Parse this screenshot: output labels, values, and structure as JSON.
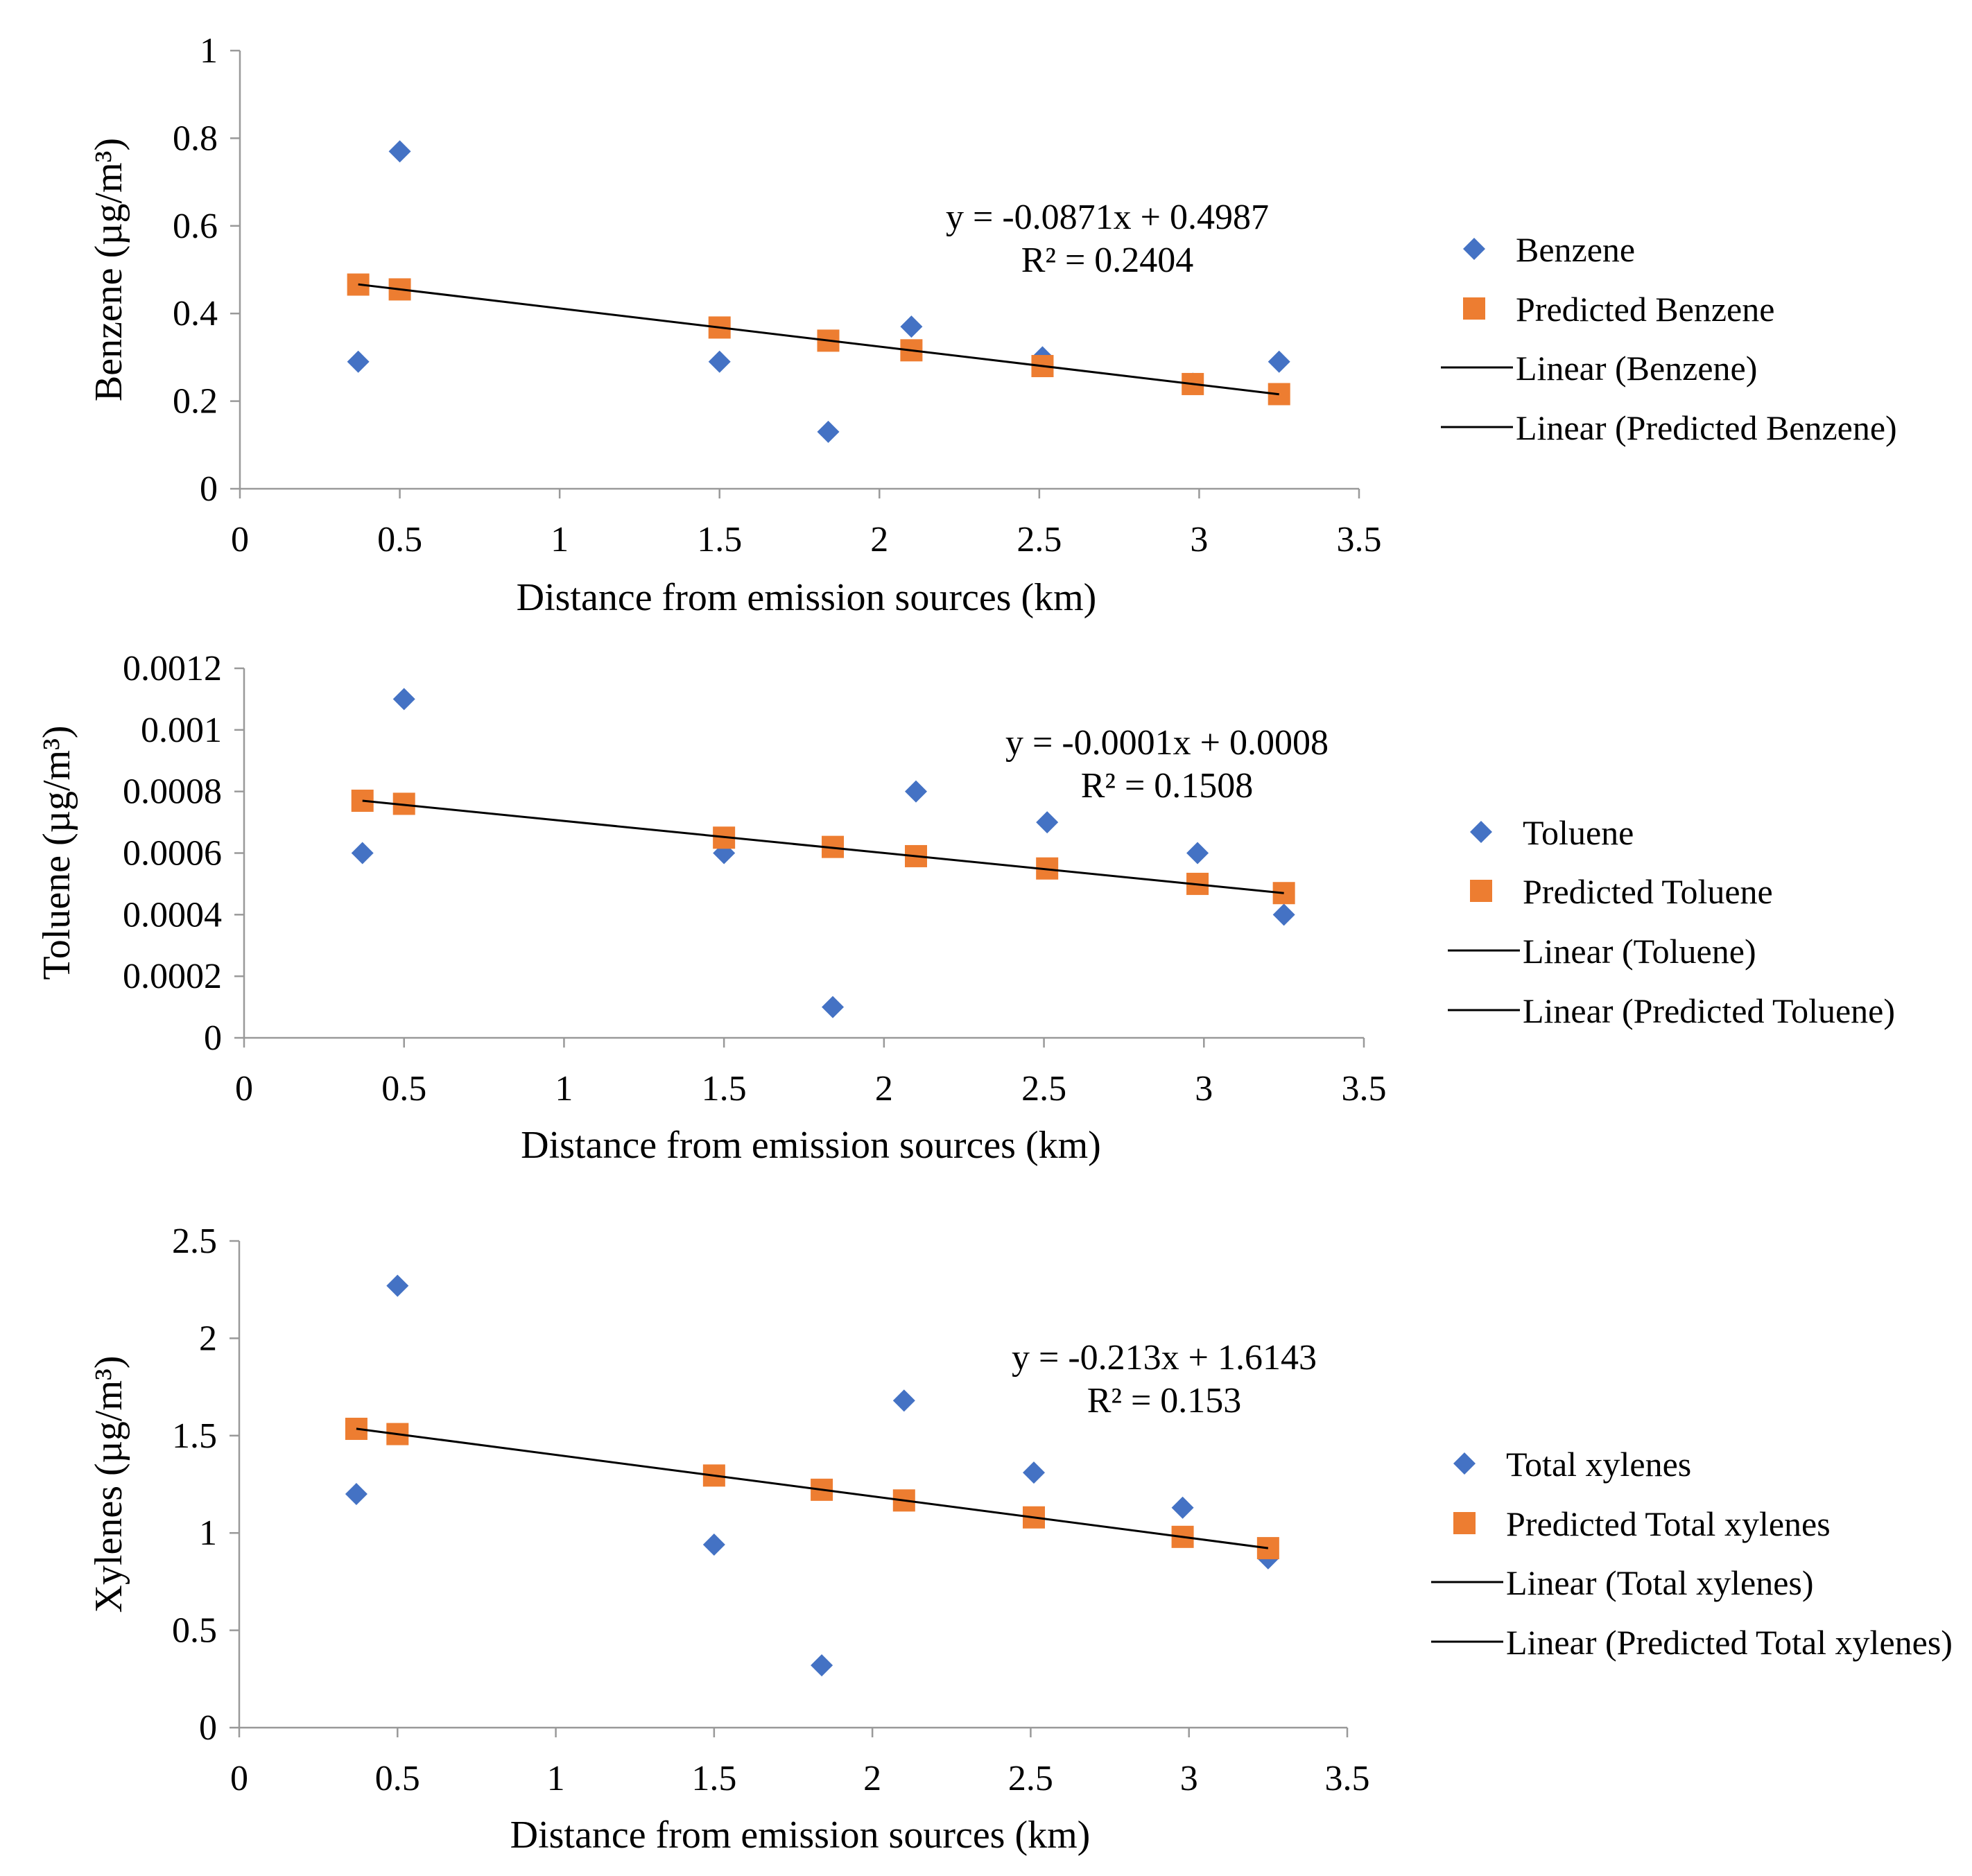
{
  "chart_data": [
    {
      "type": "scatter",
      "xlabel": "Distance from emission sources (km)",
      "ylabel": "Benzene (µg/m³)",
      "xlim": [
        0,
        3.5
      ],
      "ylim": [
        0,
        1
      ],
      "xticks": [
        "0",
        "0.5",
        "1",
        "1.5",
        "2",
        "2.5",
        "3",
        "3.5"
      ],
      "xtick_values": [
        0,
        0.5,
        1,
        1.5,
        2,
        2.5,
        3,
        3.5
      ],
      "yticks": [
        "0",
        "0.2",
        "0.4",
        "0.6",
        "0.8",
        "1"
      ],
      "ytick_values": [
        0,
        0.2,
        0.4,
        0.6,
        0.8,
        1
      ],
      "x": [
        0.37,
        0.5,
        1.5,
        1.84,
        2.1,
        2.51,
        2.98,
        3.25
      ],
      "series": [
        {
          "name": "Benzene",
          "marker": "diamond",
          "color": "#4472C4",
          "values": [
            0.29,
            0.77,
            0.29,
            0.13,
            0.37,
            0.3,
            0.24,
            0.29
          ]
        },
        {
          "name": "Predicted Benzene",
          "marker": "square",
          "color": "#ED7D31",
          "values": [
            0.466,
            0.455,
            0.368,
            0.338,
            0.316,
            0.28,
            0.239,
            0.216
          ]
        }
      ],
      "trendlines": [
        {
          "name": "Linear (Benzene)",
          "slope": -0.0871,
          "intercept": 0.4987
        },
        {
          "name": "Linear (Predicted Benzene)",
          "slope": -0.0871,
          "intercept": 0.4987
        }
      ],
      "equation": "y = -0.0871x + 0.4987",
      "r2": "R² = 0.2404",
      "legend": [
        "Benzene",
        "Predicted Benzene",
        "Linear (Benzene)",
        "Linear (Predicted Benzene)"
      ],
      "legend_position": "right"
    },
    {
      "type": "scatter",
      "xlabel": "Distance from emission sources (km)",
      "ylabel": "Toluene (µg/m³)",
      "xlim": [
        0,
        3.5
      ],
      "ylim": [
        0,
        0.0012
      ],
      "xticks": [
        "0",
        "0.5",
        "1",
        "1.5",
        "2",
        "2.5",
        "3",
        "3.5"
      ],
      "xtick_values": [
        0,
        0.5,
        1,
        1.5,
        2,
        2.5,
        3,
        3.5
      ],
      "yticks": [
        "0",
        "0.0002",
        "0.0004",
        "0.0006",
        "0.0008",
        "0.001",
        "0.0012"
      ],
      "ytick_values": [
        0,
        0.0002,
        0.0004,
        0.0006,
        0.0008,
        0.001,
        0.0012
      ],
      "x": [
        0.37,
        0.5,
        1.5,
        1.84,
        2.1,
        2.51,
        2.98,
        3.25
      ],
      "series": [
        {
          "name": "Toluene",
          "marker": "diamond",
          "color": "#4472C4",
          "values": [
            0.0006,
            0.0011,
            0.0006,
            0.0001,
            0.0008,
            0.0007,
            0.0006,
            0.0004
          ]
        },
        {
          "name": "Predicted Toluene",
          "marker": "square",
          "color": "#ED7D31",
          "values": [
            0.00077,
            0.00076,
            0.00065,
            0.00062,
            0.00059,
            0.00055,
            0.0005,
            0.00047
          ]
        }
      ],
      "trendlines": [
        {
          "name": "Linear (Toluene)",
          "from": [
            0.37,
            0.00077
          ],
          "to": [
            3.25,
            0.00047
          ]
        },
        {
          "name": "Linear (Predicted Toluene)",
          "from": [
            0.37,
            0.00077
          ],
          "to": [
            3.25,
            0.00047
          ]
        }
      ],
      "equation": "y = -0.0001x + 0.0008",
      "r2": "R² = 0.1508",
      "legend": [
        "Toluene",
        "Predicted Toluene",
        "Linear (Toluene)",
        "Linear (Predicted Toluene)"
      ],
      "legend_position": "right"
    },
    {
      "type": "scatter",
      "xlabel": "Distance from emission sources (km)",
      "ylabel": "Xylenes (µg/m³)",
      "xlim": [
        0,
        3.5
      ],
      "ylim": [
        0,
        2.5
      ],
      "xticks": [
        "0",
        "0.5",
        "1",
        "1.5",
        "2",
        "2.5",
        "3",
        "3.5"
      ],
      "xtick_values": [
        0,
        0.5,
        1,
        1.5,
        2,
        2.5,
        3,
        3.5
      ],
      "yticks": [
        "0",
        "0.5",
        "1",
        "1.5",
        "2",
        "2.5"
      ],
      "ytick_values": [
        0,
        0.5,
        1,
        1.5,
        2,
        2.5
      ],
      "x": [
        0.37,
        0.5,
        1.5,
        1.84,
        2.1,
        2.51,
        2.98,
        3.25
      ],
      "series": [
        {
          "name": "Total xylenes",
          "marker": "diamond",
          "color": "#4472C4",
          "values": [
            1.2,
            2.27,
            0.94,
            0.32,
            1.68,
            1.31,
            1.13,
            0.87
          ]
        },
        {
          "name": "Predicted Total xylenes",
          "marker": "square",
          "color": "#ED7D31",
          "values": [
            1.535,
            1.508,
            1.295,
            1.222,
            1.167,
            1.08,
            0.98,
            0.922
          ]
        }
      ],
      "trendlines": [
        {
          "name": "Linear (Total xylenes)",
          "slope": -0.213,
          "intercept": 1.6143
        },
        {
          "name": "Linear (Predicted Total xylenes)",
          "slope": -0.213,
          "intercept": 1.6143
        }
      ],
      "equation": "y = -0.213x + 1.6143",
      "r2": "R² = 0.153",
      "legend": [
        "Total xylenes",
        "Predicted Total xylenes",
        "Linear (Total xylenes)",
        "Linear (Predicted Total xylenes)"
      ],
      "legend_position": "right"
    }
  ]
}
